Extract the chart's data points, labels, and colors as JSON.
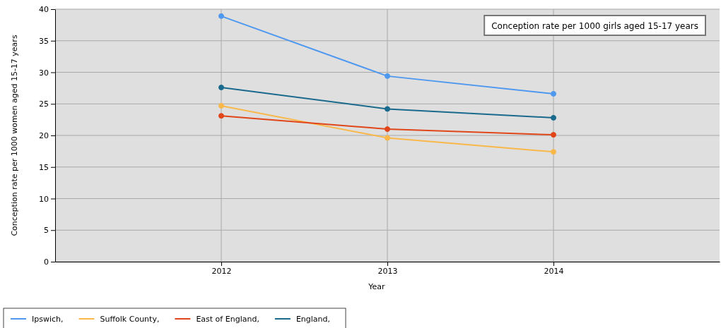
{
  "chart_data": {
    "type": "line",
    "xlabel": "Year",
    "ylabel": "Conception rate per 1000 women aged 15-17 years",
    "annotations": [
      "Conception rate per 1000 girls aged 15-17 years"
    ],
    "x": [
      2012,
      2013,
      2014
    ],
    "xlim": [
      2011,
      2015
    ],
    "xticks": [
      2012,
      2013,
      2014
    ],
    "ylim": [
      0,
      40
    ],
    "yticks": [
      0,
      5,
      10,
      15,
      20,
      25,
      30,
      35,
      40
    ],
    "grid": true,
    "marker": "circle",
    "legend": "bottom left",
    "series": [
      {
        "name": "Ipswich,",
        "color": "#4f98f0",
        "values": [
          38.9,
          29.4,
          26.6
        ]
      },
      {
        "name": "Suffolk County,",
        "color": "#f9b84a",
        "values": [
          24.7,
          19.6,
          17.4
        ]
      },
      {
        "name": "East of England,",
        "color": "#e0461a",
        "values": [
          23.1,
          21.0,
          20.1
        ]
      },
      {
        "name": "England,",
        "color": "#1a6a8e",
        "values": [
          27.6,
          24.2,
          22.8
        ]
      }
    ]
  }
}
